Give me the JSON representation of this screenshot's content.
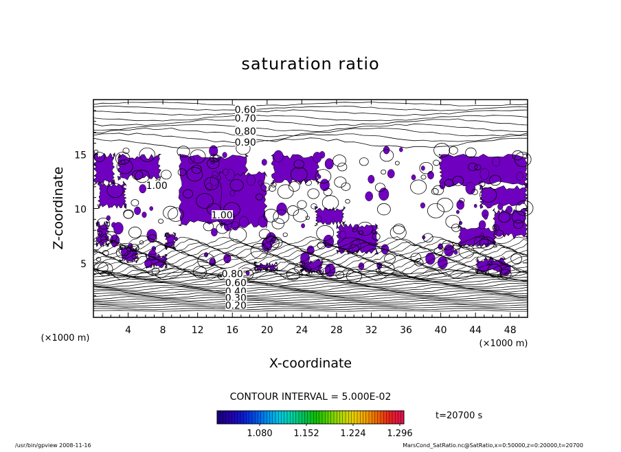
{
  "chart_data": {
    "type": "contour",
    "title": "saturation ratio",
    "xlabel": "X-coordinate",
    "ylabel": "Z-coordinate",
    "x_unit": "(×1000 m)",
    "y_unit": "(×1000 m)",
    "xlim": [
      0,
      50
    ],
    "ylim": [
      0,
      20
    ],
    "x_ticks": [
      4,
      8,
      12,
      16,
      20,
      24,
      28,
      32,
      36,
      40,
      44,
      48
    ],
    "y_ticks": [
      5,
      10,
      15
    ],
    "contour_labels": [
      {
        "text": "0.60",
        "x": 17.5,
        "z": 19.1
      },
      {
        "text": "0.70",
        "x": 17.5,
        "z": 18.3
      },
      {
        "text": "0.80",
        "x": 17.5,
        "z": 17.1
      },
      {
        "text": "0.90",
        "x": 17.5,
        "z": 16.1
      },
      {
        "text": "1.00",
        "x": 7.3,
        "z": 12.1
      },
      {
        "text": "1.00",
        "x": 14.8,
        "z": 9.4
      },
      {
        "text": "0.80",
        "x": 16.0,
        "z": 4.0
      },
      {
        "text": "0.60",
        "x": 16.4,
        "z": 3.2
      },
      {
        "text": "0.40",
        "x": 16.4,
        "z": 2.4
      },
      {
        "text": "0.30",
        "x": 16.4,
        "z": 1.8
      },
      {
        "text": "0.20",
        "x": 16.4,
        "z": 1.1
      }
    ],
    "contour_interval": "CONTOUR INTERVAL = 5.000E-02",
    "colorbar": {
      "tick_labels": [
        "1.080",
        "1.152",
        "1.224",
        "1.296"
      ],
      "colors": [
        "#1a0080",
        "#2200aa",
        "#0a1ad0",
        "#0050e6",
        "#0090f0",
        "#00c8e0",
        "#00d0a0",
        "#00c050",
        "#10c000",
        "#60d000",
        "#b0d800",
        "#e8d000",
        "#f0a000",
        "#f06000",
        "#e82020",
        "#e01050"
      ]
    },
    "filled_region_color": "#7000c0",
    "time_label": "t=20700 s"
  },
  "footer": {
    "left": "/usr/bin/gpview   2008-11-16",
    "right": "MarsCond_SatRatio.nc@SatRatio,x=0:50000,z=0:20000,t=20700"
  }
}
